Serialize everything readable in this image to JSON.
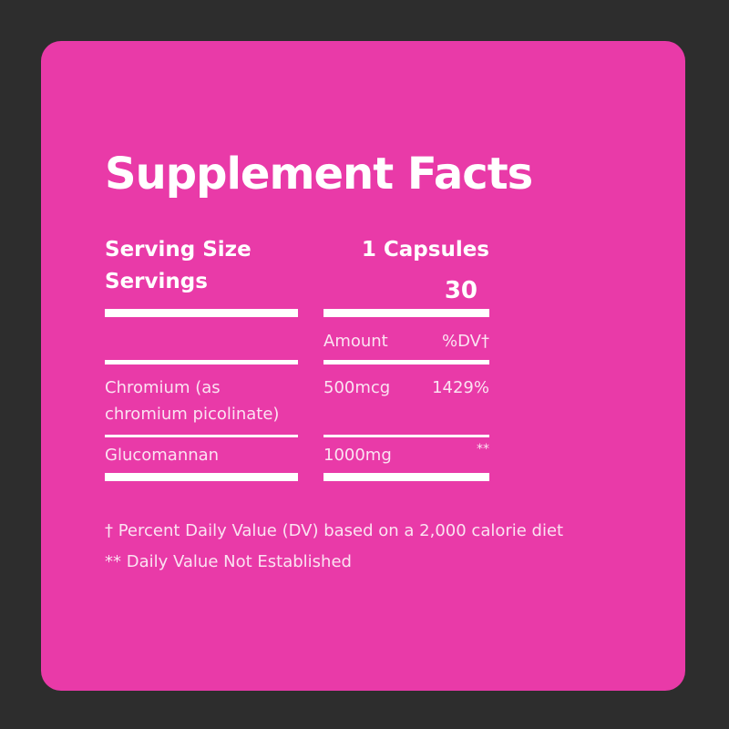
{
  "title": "Supplement Facts",
  "serving": {
    "size_label": "Serving Size",
    "size_value": "1 Capsules",
    "servings_label": "Servings",
    "servings_value": "30"
  },
  "table": {
    "headers": {
      "amount": "Amount",
      "dv": "%DV†"
    },
    "rows": [
      {
        "name_line1": "Chromium (as",
        "name_line2": "chromium picolinate)",
        "amount": "500mcg",
        "dv": "1429%"
      },
      {
        "name_line1": "Glucomannan",
        "amount": "1000mg",
        "dv": "**"
      }
    ]
  },
  "footnotes": [
    "† Percent Daily Value (DV) based on a 2,000 calorie diet",
    "** Daily Value Not Established"
  ],
  "colors": {
    "background": "#2d2d2d",
    "card": "#e93aa8",
    "text": "#ffffff"
  }
}
